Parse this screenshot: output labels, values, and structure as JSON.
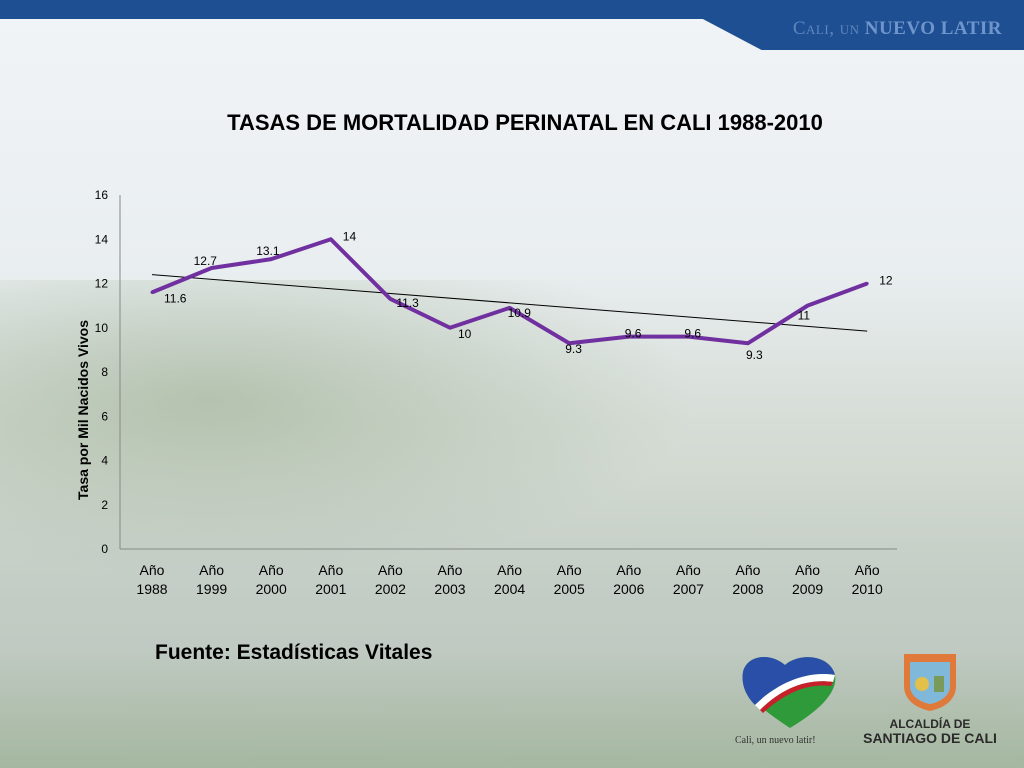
{
  "banner": {
    "text_light": "Cali, un",
    "text_bold": "nuevo latir"
  },
  "chart_data": {
    "type": "line",
    "title": "TASAS DE MORTALIDAD PERINATAL EN CALI 1988-2010",
    "ylabel": "Tasa por Mil Nacidos Vivos",
    "xlabel": "",
    "ylim": [
      0,
      16
    ],
    "yticks": [
      "0",
      "2",
      "4",
      "6",
      "8",
      "10",
      "12",
      "14",
      "16"
    ],
    "categories": [
      [
        "Año",
        "1988"
      ],
      [
        "Año",
        "1999"
      ],
      [
        "Año",
        "2000"
      ],
      [
        "Año",
        "2001"
      ],
      [
        "Año",
        "2002"
      ],
      [
        "Año",
        "2003"
      ],
      [
        "Año",
        "2004"
      ],
      [
        "Año",
        "2005"
      ],
      [
        "Año",
        "2006"
      ],
      [
        "Año",
        "2007"
      ],
      [
        "Año",
        "2008"
      ],
      [
        "Año",
        "2009"
      ],
      [
        "Año",
        "2010"
      ]
    ],
    "values": [
      11.6,
      12.7,
      13.1,
      14,
      11.3,
      10,
      10.9,
      9.3,
      9.6,
      9.6,
      9.3,
      11,
      12
    ],
    "data_labels": [
      "11.6",
      "12.7",
      "13.1",
      "14",
      "11.3",
      "10",
      "10.9",
      "9.3",
      "9.6",
      "9.6",
      "9.3",
      "11",
      "12"
    ],
    "trendline": {
      "type": "linear",
      "start": 12.4,
      "end": 9.85
    },
    "series_color": "#7030a0",
    "grid": false
  },
  "source": "Fuente: Estadísticas Vitales",
  "logos": {
    "heart_caption": "Cali, un nuevo latir!",
    "alcaldia_line1": "ALCALDÍA DE",
    "alcaldia_line2": "SANTIAGO DE CALI"
  }
}
